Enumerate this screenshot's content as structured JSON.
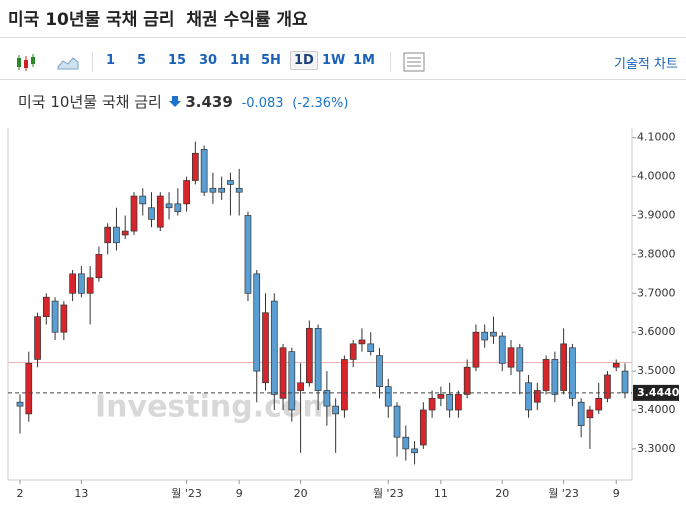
{
  "header": {
    "title": "미국 10년물 국채 금리  채권 수익률 개요"
  },
  "toolbar": {
    "intervals": [
      "1",
      "5",
      "15",
      "30",
      "1H",
      "5H",
      "1D",
      "1W",
      "1M"
    ],
    "selected": "1D",
    "technical": "기술적 차트"
  },
  "quote": {
    "name": "미국 10년물 국채 금리",
    "price": "3.439",
    "change": "-0.083",
    "change_pct": "(-2.36%)"
  },
  "chart_data": {
    "type": "candlestick",
    "watermark": "Investing.com",
    "categories": [
      "2",
      null,
      null,
      null,
      null,
      null,
      null,
      "13",
      null,
      null,
      null,
      null,
      null,
      null,
      null,
      null,
      null,
      null,
      null,
      "월 '23",
      null,
      null,
      null,
      null,
      null,
      "9",
      null,
      null,
      null,
      null,
      null,
      null,
      "20",
      null,
      null,
      null,
      null,
      null,
      null,
      null,
      null,
      null,
      "월 '23",
      null,
      null,
      null,
      null,
      null,
      "11",
      null,
      null,
      null,
      null,
      null,
      null,
      "20",
      null,
      null,
      null,
      null,
      null,
      null,
      "월 '23",
      null,
      null,
      null,
      null,
      null,
      "9",
      null
    ],
    "open": [
      3.42,
      3.39,
      3.53,
      3.64,
      3.68,
      3.6,
      3.7,
      3.75,
      3.7,
      3.74,
      3.83,
      3.87,
      3.85,
      3.86,
      3.95,
      3.92,
      3.87,
      3.93,
      3.93,
      3.93,
      3.99,
      4.07,
      3.97,
      3.97,
      3.99,
      3.97,
      3.9,
      3.75,
      3.47,
      3.68,
      3.43,
      3.55,
      3.45,
      3.47,
      3.61,
      3.45,
      3.41,
      3.4,
      3.53,
      3.57,
      3.57,
      3.54,
      3.46,
      3.41,
      3.33,
      3.3,
      3.31,
      3.4,
      3.43,
      3.44,
      3.4,
      3.44,
      3.51,
      3.6,
      3.6,
      3.59,
      3.51,
      3.56,
      3.47,
      3.42,
      3.45,
      3.53,
      3.45,
      3.56,
      3.42,
      3.38,
      3.4,
      3.43,
      3.51,
      3.5
    ],
    "high": [
      3.44,
      3.55,
      3.65,
      3.7,
      3.69,
      3.68,
      3.76,
      3.77,
      3.77,
      3.82,
      3.88,
      3.92,
      3.9,
      3.96,
      3.97,
      3.96,
      3.96,
      3.96,
      3.97,
      4.0,
      4.09,
      4.08,
      4.01,
      4.0,
      4.01,
      4.02,
      3.91,
      3.76,
      3.7,
      3.7,
      3.57,
      3.56,
      3.52,
      3.63,
      3.62,
      3.5,
      3.43,
      3.54,
      3.58,
      3.61,
      3.6,
      3.56,
      3.48,
      3.42,
      3.36,
      3.32,
      3.42,
      3.45,
      3.46,
      3.47,
      3.45,
      3.53,
      3.62,
      3.62,
      3.64,
      3.6,
      3.58,
      3.57,
      3.49,
      3.47,
      3.54,
      3.55,
      3.61,
      3.57,
      3.43,
      3.41,
      3.47,
      3.5,
      3.53,
      3.52
    ],
    "low": [
      3.34,
      3.37,
      3.51,
      3.62,
      3.58,
      3.58,
      3.68,
      3.69,
      3.62,
      3.73,
      3.8,
      3.81,
      3.84,
      3.85,
      3.9,
      3.87,
      3.86,
      3.89,
      3.9,
      3.91,
      3.98,
      3.95,
      3.93,
      3.94,
      3.9,
      3.9,
      3.68,
      3.42,
      3.45,
      3.4,
      3.4,
      3.37,
      3.29,
      3.46,
      3.4,
      3.36,
      3.29,
      3.38,
      3.51,
      3.55,
      3.54,
      3.43,
      3.38,
      3.28,
      3.27,
      3.26,
      3.3,
      3.38,
      3.41,
      3.38,
      3.38,
      3.43,
      3.5,
      3.56,
      3.57,
      3.5,
      3.49,
      3.44,
      3.38,
      3.4,
      3.44,
      3.42,
      3.44,
      3.41,
      3.33,
      3.3,
      3.39,
      3.42,
      3.5,
      3.43
    ],
    "close": [
      3.41,
      3.52,
      3.64,
      3.69,
      3.6,
      3.67,
      3.75,
      3.7,
      3.74,
      3.8,
      3.87,
      3.83,
      3.86,
      3.95,
      3.93,
      3.89,
      3.95,
      3.92,
      3.91,
      3.99,
      4.06,
      3.96,
      3.96,
      3.96,
      3.98,
      3.96,
      3.7,
      3.5,
      3.65,
      3.44,
      3.56,
      3.4,
      3.47,
      3.61,
      3.45,
      3.41,
      3.39,
      3.53,
      3.57,
      3.58,
      3.55,
      3.46,
      3.41,
      3.33,
      3.3,
      3.29,
      3.4,
      3.43,
      3.44,
      3.4,
      3.44,
      3.51,
      3.6,
      3.58,
      3.59,
      3.52,
      3.56,
      3.5,
      3.4,
      3.45,
      3.53,
      3.44,
      3.57,
      3.43,
      3.36,
      3.4,
      3.43,
      3.49,
      3.52,
      3.444
    ],
    "up_color": "#d7262b",
    "down_color": "#5a9fd4",
    "ylim": [
      3.22,
      4.125
    ],
    "yticks": [
      {
        "value": 3.3,
        "label": "3.3000"
      },
      {
        "value": 3.4,
        "label": "3.4000"
      },
      {
        "value": 3.5,
        "label": "3.5000"
      },
      {
        "value": 3.6,
        "label": "3.6000"
      },
      {
        "value": 3.7,
        "label": "3.7000"
      },
      {
        "value": 3.8,
        "label": "3.8000"
      },
      {
        "value": 3.9,
        "label": "3.9000"
      },
      {
        "value": 4.0,
        "label": "4.0000"
      },
      {
        "value": 4.1,
        "label": "4.1000"
      }
    ],
    "current": 3.444,
    "current_label": "3.4440",
    "prev_close": 3.522
  }
}
